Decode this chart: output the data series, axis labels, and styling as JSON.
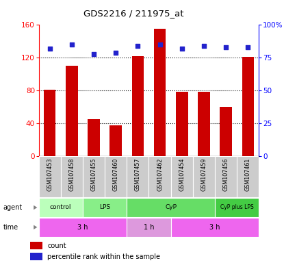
{
  "title": "GDS2216 / 211975_at",
  "samples": [
    "GSM107453",
    "GSM107458",
    "GSM107455",
    "GSM107460",
    "GSM107457",
    "GSM107462",
    "GSM107454",
    "GSM107459",
    "GSM107456",
    "GSM107461"
  ],
  "counts": [
    81,
    110,
    45,
    38,
    122,
    155,
    79,
    79,
    60,
    121
  ],
  "percentile_ranks": [
    82,
    85,
    78,
    79,
    84,
    85,
    82,
    84,
    83,
    83
  ],
  "left_ylim": [
    0,
    160
  ],
  "right_ylim": [
    0,
    100
  ],
  "left_yticks": [
    0,
    40,
    80,
    120,
    160
  ],
  "right_yticks": [
    0,
    25,
    50,
    75,
    100
  ],
  "right_yticklabels": [
    "0",
    "25",
    "50",
    "75",
    "100%"
  ],
  "bar_color": "#cc0000",
  "dot_color": "#2222cc",
  "agent_groups": [
    {
      "label": "control",
      "start": 0,
      "end": 2,
      "color": "#bbffbb"
    },
    {
      "label": "LPS",
      "start": 2,
      "end": 4,
      "color": "#88ee88"
    },
    {
      "label": "CyP",
      "start": 4,
      "end": 8,
      "color": "#66dd66"
    },
    {
      "label": "CyP plus LPS",
      "start": 8,
      "end": 10,
      "color": "#44cc44"
    }
  ],
  "time_groups": [
    {
      "label": "3 h",
      "start": 0,
      "end": 4,
      "color": "#ee66ee"
    },
    {
      "label": "1 h",
      "start": 4,
      "end": 6,
      "color": "#dd99dd"
    },
    {
      "label": "3 h",
      "start": 6,
      "end": 10,
      "color": "#ee66ee"
    }
  ],
  "agent_label": "agent",
  "time_label": "time",
  "legend_count_label": "count",
  "legend_pct_label": "percentile rank within the sample",
  "background_color": "#ffffff"
}
